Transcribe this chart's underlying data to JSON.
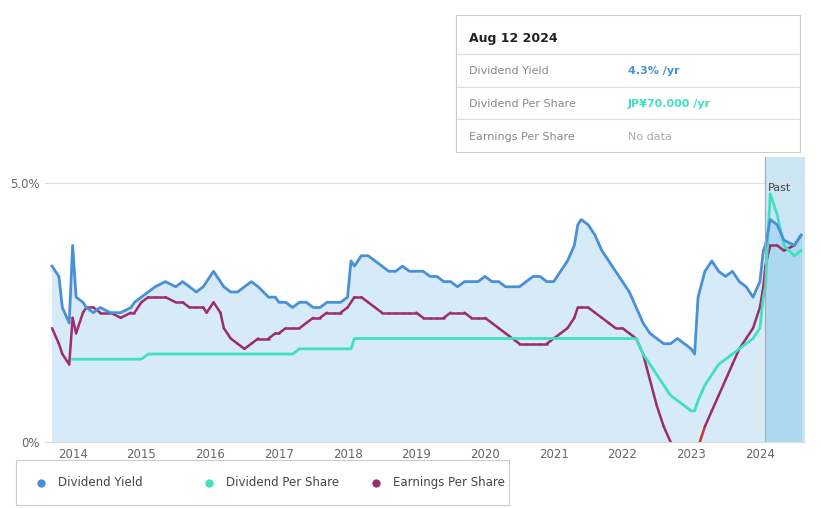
{
  "tooltip_date": "Aug 12 2024",
  "tooltip_dy": "4.3%",
  "tooltip_dps": "JP¥70.000",
  "tooltip_eps": "No data",
  "ylim": [
    0.0,
    0.055
  ],
  "bg_color": "#ffffff",
  "past_line_x": 2024.08,
  "past_shade_color": "#cce5f5",
  "main_fill_color": "#d6eaf8",
  "div_yield_color": "#4a90d9",
  "div_per_share_color": "#40e0c0",
  "eps_color": "#9b2d6e",
  "eps_neg_color": "#c0392b",
  "xtick_years": [
    2014,
    2015,
    2016,
    2017,
    2018,
    2019,
    2020,
    2021,
    2022,
    2023,
    2024
  ],
  "years": [
    2013.7,
    2013.8,
    2013.85,
    2013.95,
    2014.0,
    2014.05,
    2014.15,
    2014.2,
    2014.3,
    2014.4,
    2014.55,
    2014.7,
    2014.85,
    2014.9,
    2015.0,
    2015.1,
    2015.2,
    2015.35,
    2015.5,
    2015.6,
    2015.7,
    2015.8,
    2015.9,
    2015.95,
    2016.0,
    2016.05,
    2016.15,
    2016.2,
    2016.3,
    2016.4,
    2016.5,
    2016.6,
    2016.7,
    2016.85,
    2016.95,
    2017.0,
    2017.1,
    2017.2,
    2017.3,
    2017.4,
    2017.5,
    2017.6,
    2017.7,
    2017.8,
    2017.9,
    2018.0,
    2018.05,
    2018.1,
    2018.2,
    2018.3,
    2018.4,
    2018.5,
    2018.6,
    2018.7,
    2018.8,
    2018.9,
    2019.0,
    2019.1,
    2019.2,
    2019.3,
    2019.4,
    2019.5,
    2019.6,
    2019.7,
    2019.8,
    2019.9,
    2020.0,
    2020.1,
    2020.2,
    2020.3,
    2020.4,
    2020.5,
    2020.6,
    2020.7,
    2020.8,
    2020.9,
    2021.0,
    2021.1,
    2021.2,
    2021.3,
    2021.35,
    2021.4,
    2021.5,
    2021.6,
    2021.7,
    2021.8,
    2021.9,
    2022.0,
    2022.1,
    2022.2,
    2022.3,
    2022.4,
    2022.5,
    2022.6,
    2022.7,
    2022.8,
    2022.9,
    2023.0,
    2023.05,
    2023.1,
    2023.2,
    2023.3,
    2023.4,
    2023.5,
    2023.6,
    2023.7,
    2023.8,
    2023.9,
    2024.0,
    2024.05,
    2024.08,
    2024.15,
    2024.25,
    2024.35,
    2024.5,
    2024.6
  ],
  "div_yield": [
    0.034,
    0.032,
    0.026,
    0.023,
    0.038,
    0.028,
    0.027,
    0.026,
    0.025,
    0.026,
    0.025,
    0.025,
    0.026,
    0.027,
    0.028,
    0.029,
    0.03,
    0.031,
    0.03,
    0.031,
    0.03,
    0.029,
    0.03,
    0.031,
    0.032,
    0.033,
    0.031,
    0.03,
    0.029,
    0.029,
    0.03,
    0.031,
    0.03,
    0.028,
    0.028,
    0.027,
    0.027,
    0.026,
    0.027,
    0.027,
    0.026,
    0.026,
    0.027,
    0.027,
    0.027,
    0.028,
    0.035,
    0.034,
    0.036,
    0.036,
    0.035,
    0.034,
    0.033,
    0.033,
    0.034,
    0.033,
    0.033,
    0.033,
    0.032,
    0.032,
    0.031,
    0.031,
    0.03,
    0.031,
    0.031,
    0.031,
    0.032,
    0.031,
    0.031,
    0.03,
    0.03,
    0.03,
    0.031,
    0.032,
    0.032,
    0.031,
    0.031,
    0.033,
    0.035,
    0.038,
    0.042,
    0.043,
    0.042,
    0.04,
    0.037,
    0.035,
    0.033,
    0.031,
    0.029,
    0.026,
    0.023,
    0.021,
    0.02,
    0.019,
    0.019,
    0.02,
    0.019,
    0.018,
    0.017,
    0.028,
    0.033,
    0.035,
    0.033,
    0.032,
    0.033,
    0.031,
    0.03,
    0.028,
    0.031,
    0.037,
    0.038,
    0.043,
    0.042,
    0.039,
    0.038,
    0.04
  ],
  "div_per_share": [
    null,
    null,
    null,
    null,
    0.016,
    0.016,
    0.016,
    0.016,
    0.016,
    0.016,
    0.016,
    0.016,
    0.016,
    0.016,
    0.016,
    0.017,
    0.017,
    0.017,
    0.017,
    0.017,
    0.017,
    0.017,
    0.017,
    0.017,
    0.017,
    0.017,
    0.017,
    0.017,
    0.017,
    0.017,
    0.017,
    0.017,
    0.017,
    0.017,
    0.017,
    0.017,
    0.017,
    0.017,
    0.018,
    0.018,
    0.018,
    0.018,
    0.018,
    0.018,
    0.018,
    0.018,
    0.018,
    0.02,
    0.02,
    0.02,
    0.02,
    0.02,
    0.02,
    0.02,
    0.02,
    0.02,
    0.02,
    0.02,
    0.02,
    0.02,
    0.02,
    0.02,
    0.02,
    0.02,
    0.02,
    0.02,
    0.02,
    0.02,
    0.02,
    0.02,
    0.02,
    0.02,
    0.02,
    0.02,
    0.02,
    0.02,
    0.02,
    0.02,
    0.02,
    0.02,
    0.02,
    0.02,
    0.02,
    0.02,
    0.02,
    0.02,
    0.02,
    0.02,
    0.02,
    0.02,
    0.017,
    0.015,
    0.013,
    0.011,
    0.009,
    0.008,
    0.007,
    0.006,
    0.006,
    0.008,
    0.011,
    0.013,
    0.015,
    0.016,
    0.017,
    0.018,
    0.019,
    0.02,
    0.022,
    0.028,
    0.03,
    0.048,
    0.044,
    0.038,
    0.036,
    0.037
  ],
  "eps": [
    0.022,
    0.019,
    0.017,
    0.015,
    0.024,
    0.021,
    0.025,
    0.026,
    0.026,
    0.025,
    0.025,
    0.024,
    0.025,
    0.025,
    0.027,
    0.028,
    0.028,
    0.028,
    0.027,
    0.027,
    0.026,
    0.026,
    0.026,
    0.025,
    0.026,
    0.027,
    0.025,
    0.022,
    0.02,
    0.019,
    0.018,
    0.019,
    0.02,
    0.02,
    0.021,
    0.021,
    0.022,
    0.022,
    0.022,
    0.023,
    0.024,
    0.024,
    0.025,
    0.025,
    0.025,
    0.026,
    0.027,
    0.028,
    0.028,
    0.027,
    0.026,
    0.025,
    0.025,
    0.025,
    0.025,
    0.025,
    0.025,
    0.024,
    0.024,
    0.024,
    0.024,
    0.025,
    0.025,
    0.025,
    0.024,
    0.024,
    0.024,
    0.023,
    0.022,
    0.021,
    0.02,
    0.019,
    0.019,
    0.019,
    0.019,
    0.019,
    0.02,
    0.021,
    0.022,
    0.024,
    0.026,
    0.026,
    0.026,
    0.025,
    0.024,
    0.023,
    0.022,
    0.022,
    0.021,
    0.02,
    0.017,
    0.012,
    0.007,
    0.003,
    0.0,
    -0.003,
    -0.003,
    -0.003,
    -0.003,
    -0.001,
    0.003,
    0.006,
    0.009,
    0.012,
    0.015,
    0.018,
    0.02,
    0.022,
    0.026,
    0.03,
    0.034,
    0.038,
    0.038,
    0.037,
    0.038,
    0.04
  ]
}
